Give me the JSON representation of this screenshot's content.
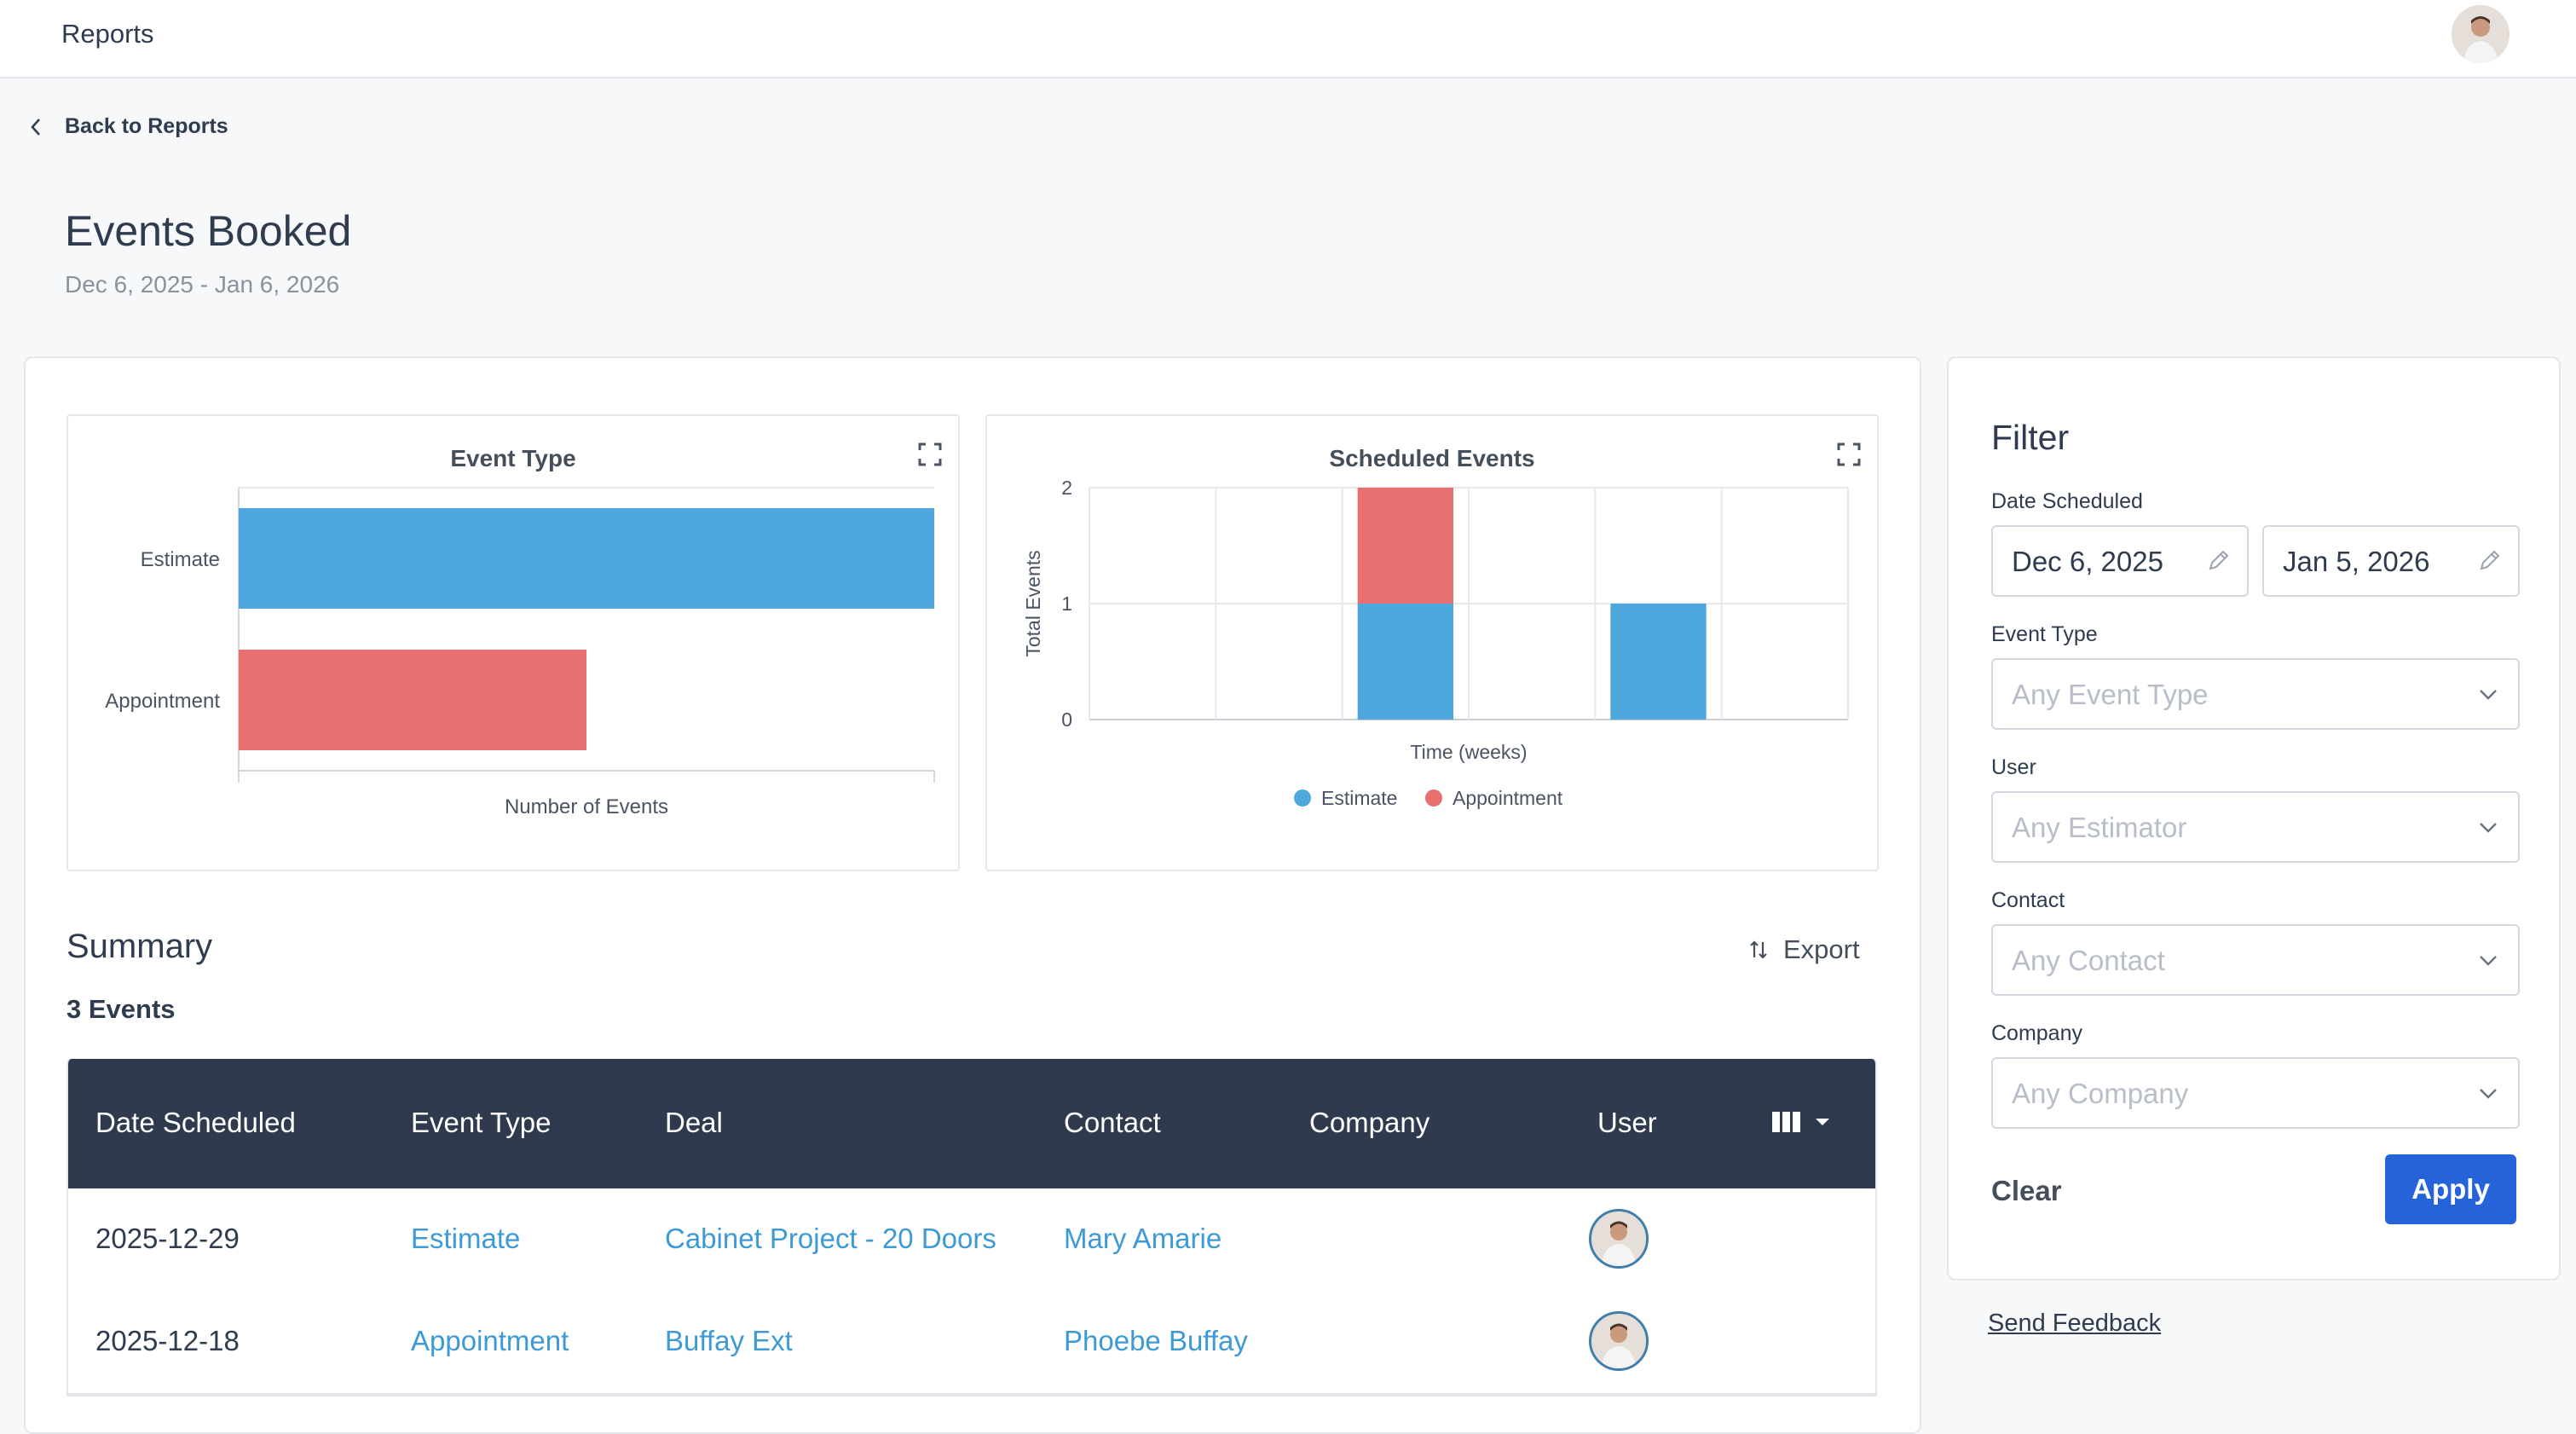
{
  "header": {
    "app_title": "Reports"
  },
  "nav": {
    "back_label": "Back to Reports"
  },
  "page": {
    "title": "Events Booked",
    "date_range": "Dec 6, 2025 - Jan 6, 2026"
  },
  "colors": {
    "estimate": "#4fa8dd",
    "appointment": "#e87070",
    "table_header": "#2f3a4f",
    "link": "#3d9ad6",
    "primary_button": "#2563d9"
  },
  "chart_data": [
    {
      "type": "bar",
      "orientation": "horizontal",
      "title": "Event Type",
      "categories": [
        "Estimate",
        "Appointment"
      ],
      "values": [
        2,
        1
      ],
      "colors": [
        "#4fa8dd",
        "#e87070"
      ],
      "xlabel": "Number of Events",
      "ylabel": ""
    },
    {
      "type": "bar",
      "stacked": true,
      "title": "Scheduled Events",
      "xlabel": "Time (weeks)",
      "ylabel": "Total Events",
      "yticks": [
        "0",
        "1",
        "2"
      ],
      "ylim": [
        0,
        2
      ],
      "categories": [
        "",
        "",
        "",
        "",
        "",
        ""
      ],
      "series": [
        {
          "name": "Estimate",
          "color": "#4fa8dd",
          "values": [
            0,
            0,
            1,
            0,
            1,
            0
          ]
        },
        {
          "name": "Appointment",
          "color": "#e87070",
          "values": [
            0,
            0,
            1,
            0,
            0,
            0
          ]
        }
      ],
      "legend": "bottom"
    }
  ],
  "summary": {
    "title": "Summary",
    "count_label": "3 Events",
    "export_label": "Export",
    "columns": [
      "Date Scheduled",
      "Event Type",
      "Deal",
      "Contact",
      "Company",
      "User"
    ],
    "rows": [
      {
        "date": "2025-12-29",
        "event_type": "Estimate",
        "deal": "Cabinet Project - 20 Doors",
        "contact": "Mary Amarie",
        "company": ""
      },
      {
        "date": "2025-12-18",
        "event_type": "Appointment",
        "deal": "Buffay Ext",
        "contact": "Phoebe Buffay",
        "company": ""
      }
    ]
  },
  "filter": {
    "title": "Filter",
    "date_label": "Date Scheduled",
    "date_from": "Dec 6, 2025",
    "date_to": "Jan 5, 2026",
    "event_type_label": "Event Type",
    "event_type_placeholder": "Any Event Type",
    "user_label": "User",
    "user_placeholder": "Any Estimator",
    "contact_label": "Contact",
    "contact_placeholder": "Any Contact",
    "company_label": "Company",
    "company_placeholder": "Any Company",
    "clear_label": "Clear",
    "apply_label": "Apply"
  },
  "footer": {
    "feedback_label": "Send Feedback"
  }
}
